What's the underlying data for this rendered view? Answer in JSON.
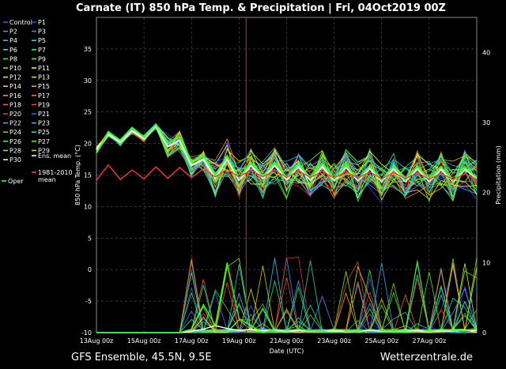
{
  "header": {
    "title": "Carnate  (IT)  850 hPa Temp. & Precipitation | Fri, 04Oct2019 00Z"
  },
  "footer": {
    "left": "GFS Ensemble, 45.5N, 9.5E",
    "right": "Wetterzentrale.de"
  },
  "chart_data": {
    "type": "line",
    "title": "Carnate  (IT)  850 hPa Temp. & Precipitation | Fri, 04Oct2019 00Z",
    "xlabel": "Date (UTC)",
    "ylabel": "850 hPa Temp. (°C)",
    "y2label": "Precipitation (mm)",
    "xticks": [
      "13Aug 00z",
      "15Aug 00z",
      "17Aug 00z",
      "19Aug 00z",
      "21Aug 00z",
      "23Aug 00z",
      "25Aug 00z",
      "27Aug 00z"
    ],
    "ylim": [
      -10,
      40
    ],
    "y2lim": [
      0,
      45
    ],
    "yticks": [
      -10,
      -5,
      0,
      5,
      10,
      15,
      20,
      25,
      30,
      35
    ],
    "y2ticks": [
      0,
      10,
      20,
      30,
      40
    ],
    "grid": true,
    "legend_position": "left",
    "legend": [
      {
        "name": "Control",
        "color": "#4d4dff"
      },
      {
        "name": "P1",
        "color": "#3a3aff"
      },
      {
        "name": "P2",
        "color": "#5a8cff"
      },
      {
        "name": "P3",
        "color": "#3f7fff"
      },
      {
        "name": "P4",
        "color": "#3cb4ff"
      },
      {
        "name": "P5",
        "color": "#33c8ff"
      },
      {
        "name": "P6",
        "color": "#22ddcc"
      },
      {
        "name": "P7",
        "color": "#22ee99"
      },
      {
        "name": "P8",
        "color": "#22ee66"
      },
      {
        "name": "P9",
        "color": "#44ee44"
      },
      {
        "name": "P10",
        "color": "#66ee22"
      },
      {
        "name": "P11",
        "color": "#ddff33"
      },
      {
        "name": "P12",
        "color": "#eeee22"
      },
      {
        "name": "P13",
        "color": "#eedd22"
      },
      {
        "name": "P14",
        "color": "#eecc22"
      },
      {
        "name": "P15",
        "color": "#eeaa22"
      },
      {
        "name": "P16",
        "color": "#ee9922"
      },
      {
        "name": "P17",
        "color": "#ee7722"
      },
      {
        "name": "P18",
        "color": "#ee6622"
      },
      {
        "name": "P19",
        "color": "#ee4422"
      },
      {
        "name": "P20",
        "color": "#dd3333"
      },
      {
        "name": "P21",
        "color": "#3355ff"
      },
      {
        "name": "P22",
        "color": "#44aaff"
      },
      {
        "name": "P23",
        "color": "#22bbee"
      },
      {
        "name": "P24",
        "color": "#22ddbb"
      },
      {
        "name": "P25",
        "color": "#22ee88"
      },
      {
        "name": "P26",
        "color": "#33ee55"
      },
      {
        "name": "P27",
        "color": "#55ee33"
      },
      {
        "name": "P28",
        "color": "#77ee22"
      },
      {
        "name": "P29",
        "color": "#99ee22"
      },
      {
        "name": "P30",
        "color": "#ffff33"
      },
      {
        "name": "Ens. mean",
        "color": "#ffffff"
      },
      {
        "name": "1981-2010 mean",
        "color": "#ff3333"
      },
      {
        "name": "Oper",
        "color": "#33ff33"
      }
    ],
    "x_days": [
      0,
      0.5,
      1,
      1.5,
      2,
      2.5,
      3,
      3.5,
      4,
      4.5,
      5,
      5.5,
      6,
      6.5,
      7,
      7.5,
      8,
      8.5,
      9,
      9.5,
      10,
      10.5,
      11,
      11.5,
      12,
      12.5,
      13,
      13.5,
      14,
      14.5,
      15,
      15.5,
      16
    ],
    "series": [
      {
        "name": "Ens. mean",
        "color": "#ffffff",
        "values": [
          19,
          21.5,
          20.2,
          22,
          20.8,
          22.8,
          19.5,
          20.5,
          16.5,
          17.5,
          14.5,
          17.5,
          14.2,
          16.5,
          14.5,
          16.5,
          14.3,
          16.3,
          14.2,
          16.3,
          14.2,
          16.2,
          14.1,
          16.0,
          14.0,
          16.0,
          14.0,
          16.0,
          14.0,
          15.9,
          14.0,
          15.9,
          14.5
        ]
      },
      {
        "name": "Oper",
        "color": "#33ff33",
        "values": [
          18.5,
          21.8,
          20.5,
          22.5,
          21,
          23,
          20,
          21,
          17,
          18,
          15,
          18,
          14.5,
          17,
          14.8,
          17,
          14.6,
          16.8,
          14.5,
          16.8,
          14.4,
          16.6,
          14.3,
          16.5,
          14.2,
          16.4,
          14.2,
          16.4,
          14.2,
          16.3,
          14.1,
          16.2,
          14.6
        ]
      },
      {
        "name": "1981-2010 mean",
        "color": "#ff3333",
        "values": [
          14.2,
          16.6,
          14.3,
          15.8,
          14.4,
          16.3,
          14.5,
          16.2,
          14.6,
          16.0,
          14.7,
          15.9,
          14.7,
          15.8,
          14.7,
          15.8,
          14.6,
          15.7,
          14.6,
          15.6,
          14.5,
          15.6,
          14.5,
          15.5,
          14.4,
          15.4,
          14.4,
          15.4,
          14.3,
          15.3,
          14.3,
          15.2,
          14.2
        ]
      },
      {
        "name": "Precip mean",
        "color": "#ffffff",
        "axis": "y2",
        "values": [
          0,
          0,
          0,
          0,
          0,
          0,
          0,
          0,
          0.2,
          0.5,
          1.0,
          0.6,
          0.3,
          0.5,
          0.3,
          0.4,
          0.2,
          0.3,
          0.2,
          0.3,
          0.2,
          0.3,
          0.2,
          0.3,
          0.2,
          0.2,
          0.2,
          0.3,
          0.2,
          0.2,
          0.2,
          0.3,
          0.3
        ]
      },
      {
        "name": "Precip Oper",
        "color": "#33ff33",
        "axis": "y2",
        "values": [
          0,
          0,
          0,
          0,
          0,
          0,
          0,
          0,
          0.5,
          4,
          1,
          10,
          2,
          1,
          0,
          0.5,
          0.3,
          0.5,
          0.2,
          0.3,
          0.5,
          0.3,
          0.2,
          0.5,
          0.3,
          0.2,
          0.3,
          0.5,
          0.2,
          0.5,
          0.3,
          0.3,
          0.5
        ]
      }
    ]
  }
}
